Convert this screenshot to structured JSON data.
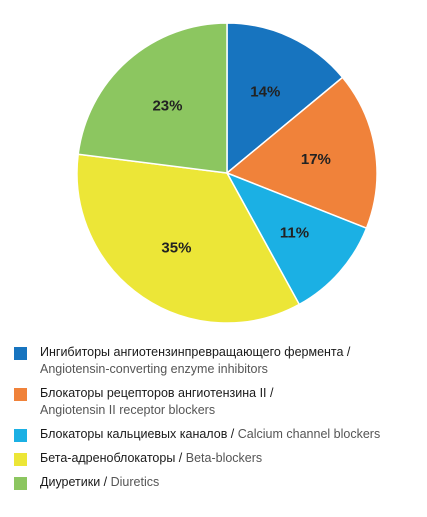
{
  "chart_data": {
    "type": "pie",
    "slices": [
      {
        "value": 14,
        "label": "14%",
        "color": "#1774bf",
        "legend_ru": "Ингибиторы ангиотензинпревращающего фермента / ",
        "legend_en": "Angiotensin-converting enzyme inhibitors"
      },
      {
        "value": 17,
        "label": "17%",
        "color": "#f0823a",
        "legend_ru": "Блокаторы рецепторов ангиотензина II / ",
        "legend_en": "Angiotensin II receptor blockers"
      },
      {
        "value": 11,
        "label": "11%",
        "color": "#1bb0e4",
        "legend_ru": "Блокаторы кальциевых каналов / ",
        "legend_en": "Calcium channel blockers"
      },
      {
        "value": 35,
        "label": "35%",
        "color": "#ece637",
        "legend_ru": "Бета-адреноблокаторы / ",
        "legend_en": "Beta-blockers"
      },
      {
        "value": 23,
        "label": "23%",
        "color": "#8cc660",
        "legend_ru": "Диуретики / ",
        "legend_en": "Diuretics"
      }
    ]
  }
}
